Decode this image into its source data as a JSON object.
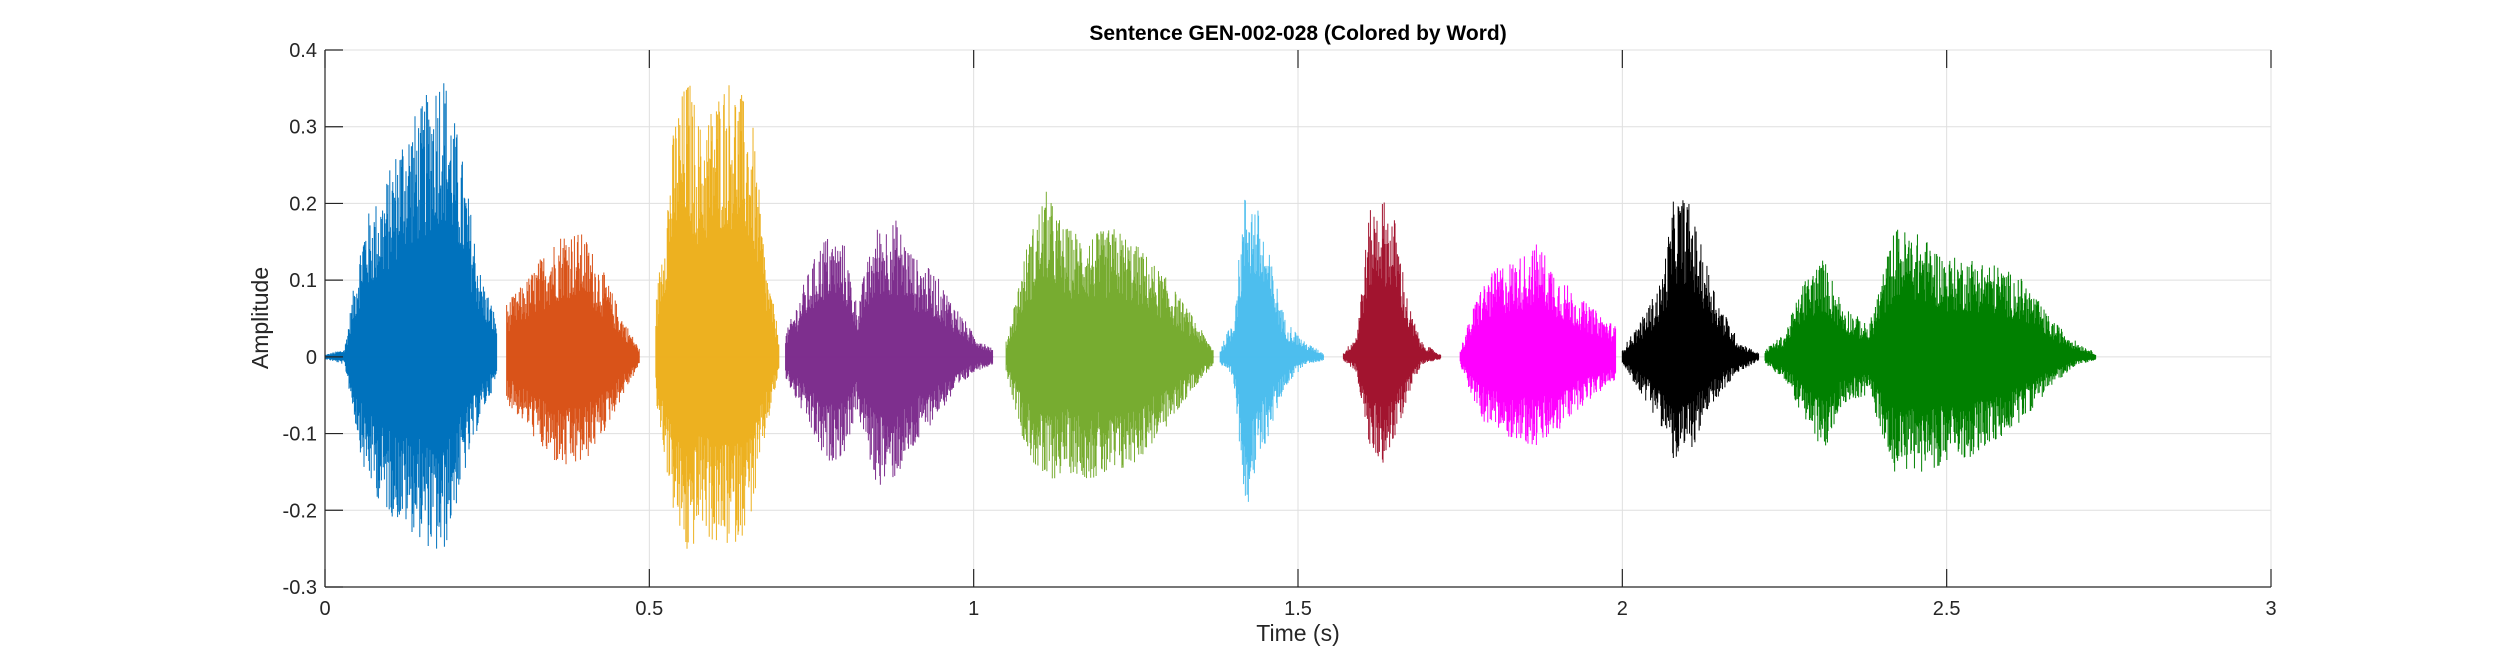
{
  "chart_data": {
    "type": "line",
    "title": "Sentence GEN-002-028 (Colored by Word)",
    "xlabel": "Time (s)",
    "ylabel": "Amplitude",
    "xlim": [
      0,
      3
    ],
    "ylim": [
      -0.3,
      0.4
    ],
    "xticks": [
      0,
      0.5,
      1,
      1.5,
      2,
      2.5,
      3
    ],
    "xtick_labels": [
      "0",
      "0.5",
      "1",
      "1.5",
      "2",
      "2.5",
      "3"
    ],
    "yticks": [
      -0.3,
      -0.2,
      -0.1,
      0,
      0.1,
      0.2,
      0.3,
      0.4
    ],
    "ytick_labels": [
      "-0.3",
      "-0.2",
      "-0.1",
      "0",
      "0.1",
      "0.2",
      "0.3",
      "0.4"
    ],
    "grid": true,
    "legend": "none",
    "series": [
      {
        "color": "#0072BD",
        "x": [
          0.0,
          0.03,
          0.06,
          0.09,
          0.12,
          0.15,
          0.18,
          0.21,
          0.24,
          0.265
        ],
        "upper": [
          0.003,
          0.01,
          0.18,
          0.22,
          0.3,
          0.33,
          0.39,
          0.27,
          0.11,
          0.05
        ],
        "lower": [
          -0.003,
          -0.01,
          -0.15,
          -0.2,
          -0.22,
          -0.24,
          -0.27,
          -0.17,
          -0.08,
          -0.03
        ]
      },
      {
        "color": "#D95319",
        "x": [
          0.28,
          0.31,
          0.34,
          0.37,
          0.4,
          0.43,
          0.46,
          0.485
        ],
        "upper": [
          0.07,
          0.1,
          0.14,
          0.17,
          0.16,
          0.11,
          0.05,
          0.01
        ],
        "lower": [
          -0.06,
          -0.09,
          -0.13,
          -0.15,
          -0.14,
          -0.1,
          -0.05,
          -0.01
        ]
      },
      {
        "color": "#EDB120",
        "x": [
          0.51,
          0.54,
          0.56,
          0.58,
          0.6,
          0.62,
          0.64,
          0.66,
          0.68,
          0.7
        ],
        "upper": [
          0.07,
          0.32,
          0.37,
          0.3,
          0.34,
          0.37,
          0.35,
          0.3,
          0.12,
          0.03
        ],
        "lower": [
          -0.06,
          -0.22,
          -0.27,
          -0.22,
          -0.25,
          -0.25,
          -0.24,
          -0.2,
          -0.1,
          -0.02
        ]
      },
      {
        "color": "#7E2F8E",
        "x": [
          0.71,
          0.74,
          0.77,
          0.8,
          0.82,
          0.85,
          0.88,
          0.91,
          0.94,
          0.97,
          1.0,
          1.03
        ],
        "upper": [
          0.03,
          0.1,
          0.16,
          0.15,
          0.07,
          0.17,
          0.18,
          0.13,
          0.11,
          0.07,
          0.03,
          0.01
        ],
        "lower": [
          -0.03,
          -0.08,
          -0.14,
          -0.13,
          -0.07,
          -0.17,
          -0.16,
          -0.12,
          -0.08,
          -0.05,
          -0.02,
          -0.01
        ]
      },
      {
        "color": "#77AC30",
        "x": [
          1.05,
          1.08,
          1.11,
          1.14,
          1.18,
          1.22,
          1.26,
          1.3,
          1.34,
          1.37
        ],
        "upper": [
          0.02,
          0.14,
          0.22,
          0.17,
          0.16,
          0.17,
          0.14,
          0.1,
          0.05,
          0.01
        ],
        "lower": [
          -0.02,
          -0.12,
          -0.17,
          -0.15,
          -0.16,
          -0.16,
          -0.13,
          -0.09,
          -0.04,
          -0.01
        ]
      },
      {
        "color": "#4DBEEE",
        "x": [
          1.38,
          1.4,
          1.42,
          1.44,
          1.46,
          1.48,
          1.51,
          1.54
        ],
        "upper": [
          0.01,
          0.05,
          0.23,
          0.19,
          0.12,
          0.05,
          0.02,
          0.005
        ],
        "lower": [
          -0.01,
          -0.03,
          -0.2,
          -0.14,
          -0.09,
          -0.04,
          -0.01,
          -0.005
        ]
      },
      {
        "color": "#A2142F",
        "x": [
          1.57,
          1.59,
          1.61,
          1.63,
          1.65,
          1.67,
          1.69,
          1.72
        ],
        "upper": [
          0.005,
          0.03,
          0.19,
          0.21,
          0.18,
          0.07,
          0.02,
          0.003
        ],
        "lower": [
          -0.005,
          -0.02,
          -0.12,
          -0.14,
          -0.11,
          -0.05,
          -0.01,
          -0.003
        ]
      },
      {
        "color": "#FF00FF",
        "x": [
          1.75,
          1.78,
          1.81,
          1.84,
          1.87,
          1.9,
          1.93,
          1.96,
          1.99
        ],
        "upper": [
          0.01,
          0.09,
          0.12,
          0.13,
          0.15,
          0.11,
          0.08,
          0.06,
          0.04
        ],
        "lower": [
          -0.01,
          -0.08,
          -0.1,
          -0.11,
          -0.12,
          -0.1,
          -0.07,
          -0.05,
          -0.03
        ]
      },
      {
        "color": "#000000",
        "x": [
          2.0,
          2.03,
          2.06,
          2.08,
          2.1,
          2.12,
          2.15,
          2.18,
          2.21
        ],
        "upper": [
          0.01,
          0.05,
          0.1,
          0.21,
          0.21,
          0.15,
          0.07,
          0.02,
          0.005
        ],
        "lower": [
          -0.01,
          -0.05,
          -0.09,
          -0.14,
          -0.13,
          -0.1,
          -0.05,
          -0.02,
          -0.005
        ]
      },
      {
        "color": "#008000",
        "x": [
          2.22,
          2.25,
          2.28,
          2.31,
          2.34,
          2.38,
          2.42,
          2.46,
          2.5,
          2.54,
          2.58,
          2.62,
          2.66,
          2.7,
          2.73
        ],
        "upper": [
          0.01,
          0.03,
          0.1,
          0.13,
          0.07,
          0.04,
          0.17,
          0.16,
          0.13,
          0.13,
          0.12,
          0.1,
          0.05,
          0.02,
          0.005
        ],
        "lower": [
          -0.01,
          -0.03,
          -0.08,
          -0.13,
          -0.06,
          -0.05,
          -0.15,
          -0.15,
          -0.14,
          -0.13,
          -0.11,
          -0.08,
          -0.04,
          -0.01,
          -0.005
        ]
      }
    ]
  }
}
